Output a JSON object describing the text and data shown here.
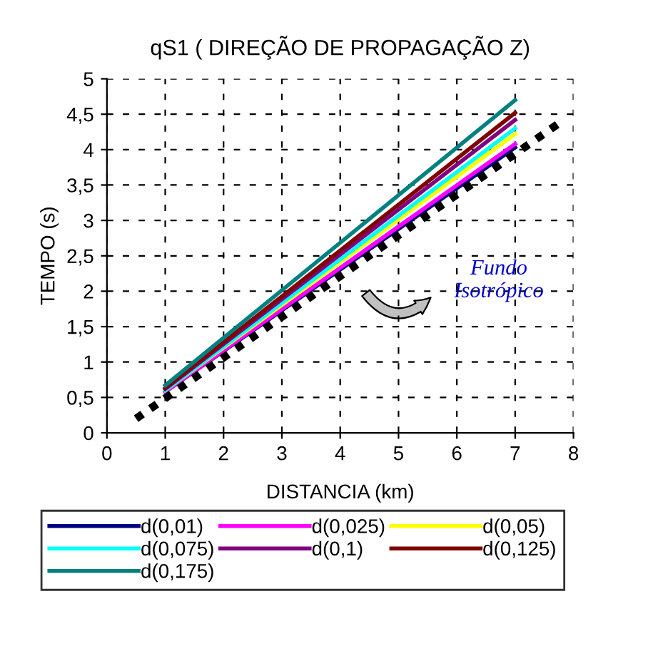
{
  "chart_data": {
    "type": "line",
    "title": "qS1 ( DIREÇÃO DE PROPAGAÇÃO Z)",
    "xlabel": "DISTANCIA (km)",
    "ylabel": "TEMPO (s)",
    "xlim": [
      0,
      8
    ],
    "xticks": [
      0,
      1,
      2,
      3,
      4,
      5,
      6,
      7,
      8
    ],
    "ylim": [
      0,
      5
    ],
    "yticks": [
      0,
      {
        "value": 0.5,
        "label": "0,5"
      },
      1,
      {
        "value": 1.5,
        "label": "1,5"
      },
      2,
      {
        "value": 2.5,
        "label": "2,5"
      },
      3,
      {
        "value": 3.5,
        "label": "3,5"
      },
      4,
      {
        "value": 4.5,
        "label": "4,5"
      },
      5
    ],
    "grid": true,
    "legend": "bottom",
    "marker": "none",
    "annotations": [
      "Fundo Isotrópico"
    ],
    "series": [
      {
        "name": "d(0,01)",
        "color": "#000080",
        "x": [
          1,
          7
        ],
        "values": [
          0.58,
          4.03
        ]
      },
      {
        "name": "d(0,025)",
        "color": "#ff00ff",
        "x": [
          1,
          7
        ],
        "values": [
          0.58,
          4.08
        ]
      },
      {
        "name": "d(0,05)",
        "color": "#ffff00",
        "x": [
          1,
          7
        ],
        "values": [
          0.6,
          4.22
        ]
      },
      {
        "name": "d(0,075)",
        "color": "#00ffff",
        "x": [
          1,
          7
        ],
        "values": [
          0.6,
          4.3
        ]
      },
      {
        "name": "d(0,1)",
        "color": "#800080",
        "x": [
          1,
          7
        ],
        "values": [
          0.62,
          4.42
        ]
      },
      {
        "name": "d(0,125)",
        "color": "#800000",
        "x": [
          1,
          7
        ],
        "values": [
          0.63,
          4.52
        ]
      },
      {
        "name": "d(0,175)",
        "color": "#008080",
        "x": [
          1,
          7
        ],
        "values": [
          0.67,
          4.7
        ]
      },
      {
        "color": "#000000",
        "line_style": "dotted",
        "x": [
          0.5,
          7.8
        ],
        "values": [
          0.2,
          4.4
        ]
      }
    ]
  }
}
